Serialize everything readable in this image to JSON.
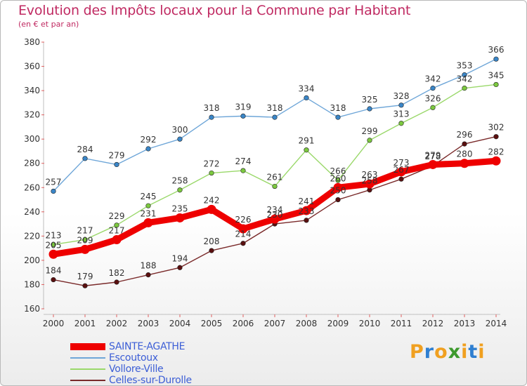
{
  "header": {
    "title": "Evolution des Impôts locaux pour la Commune par Habitant",
    "subtitle": "(en € et par an)"
  },
  "logo": {
    "letters": [
      "P",
      "r",
      "o",
      "x",
      "i",
      "t",
      "i"
    ],
    "colors": [
      "#f0a020",
      "#2f7fd1",
      "#f0a020",
      "#3d9a2d",
      "#f0a020",
      "#2f7fd1",
      "#f0a020"
    ]
  },
  "chart_data": {
    "type": "line",
    "title": "Evolution des Impôts locaux pour la Commune par Habitant",
    "subtitle": "(en € et par an)",
    "xlabel": "",
    "ylabel": "",
    "ylim": [
      160,
      380
    ],
    "yticks": [
      160,
      180,
      200,
      220,
      240,
      260,
      280,
      300,
      320,
      340,
      360,
      380
    ],
    "grid": false,
    "legend_position": "bottom-left",
    "categories": [
      "2000",
      "2001",
      "2002",
      "2003",
      "2004",
      "2005",
      "2006",
      "2007",
      "2008",
      "2009",
      "2010",
      "2011",
      "2012",
      "2013",
      "2014"
    ],
    "series": [
      {
        "name": "Celles-sur-Durolle",
        "color": "#7a2a2a",
        "marker": "#5a0f0f",
        "emphasis": false,
        "values": [
          184,
          179,
          182,
          188,
          194,
          208,
          214,
          230,
          233,
          250,
          258,
          267,
          278,
          296,
          302
        ]
      },
      {
        "name": "Vollore-Ville",
        "color": "#9ad86a",
        "marker": "#7cc93f",
        "emphasis": false,
        "values": [
          213,
          217,
          229,
          245,
          258,
          272,
          274,
          261,
          291,
          266,
          299,
          313,
          326,
          342,
          345
        ]
      },
      {
        "name": "Escoutoux",
        "color": "#6ea6d8",
        "marker": "#3a86c8",
        "emphasis": false,
        "values": [
          257,
          284,
          279,
          292,
          300,
          318,
          319,
          318,
          334,
          318,
          325,
          328,
          342,
          353,
          366
        ]
      },
      {
        "name": "SAINTE-AGATHE",
        "color": "#ee0000",
        "marker": "#ee0000",
        "emphasis": true,
        "values": [
          205,
          209,
          217,
          231,
          235,
          242,
          226,
          234,
          241,
          260,
          263,
          273,
          279,
          280,
          282
        ]
      }
    ]
  },
  "legend": {
    "items": [
      {
        "label": "SAINTE-AGATHE",
        "color": "#ee0000"
      },
      {
        "label": "Escoutoux",
        "color": "#6ea6d8"
      },
      {
        "label": "Vollore-Ville",
        "color": "#9ad86a"
      },
      {
        "label": "Celles-sur-Durolle",
        "color": "#7a2a2a"
      }
    ]
  }
}
